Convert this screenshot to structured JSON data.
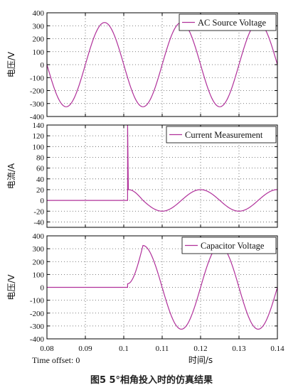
{
  "figure_caption": "图5   5°相角投入时的仿真结果",
  "time_offset_text": "Time offset: 0",
  "x_axis": {
    "label": "时间/s",
    "range": [
      0.08,
      0.14
    ],
    "ticks": [
      0.08,
      0.09,
      0.1,
      0.11,
      0.12,
      0.13,
      0.14
    ],
    "tick_labels": [
      "0.08",
      "0.09",
      "0.1",
      "0.11",
      "0.12",
      "0.13",
      "0.14"
    ]
  },
  "colors": {
    "trace": "#b0309a",
    "axis": "#000000",
    "grid": "#555555"
  },
  "chart_data": [
    {
      "type": "line",
      "legend": "AC Source Voltage",
      "ylabel": "电压/V",
      "ylim": [
        -400,
        400
      ],
      "yticks": [
        -400,
        -300,
        -200,
        -100,
        0,
        100,
        200,
        300,
        400
      ],
      "grid": true,
      "legend_placement": "top-right",
      "series": [
        {
          "x": [
            0.08,
            0.085,
            0.09,
            0.095,
            0.1,
            0.105,
            0.11,
            0.115,
            0.12,
            0.125,
            0.13,
            0.135,
            0.14
          ],
          "values": [
            0,
            -325,
            0,
            325,
            0,
            -325,
            0,
            325,
            0,
            -325,
            0,
            325,
            0
          ]
        }
      ]
    },
    {
      "type": "line",
      "legend": "Current Measurement",
      "ylabel": "电流/A",
      "ylim": [
        -50,
        140
      ],
      "yticks": [
        -40,
        -20,
        0,
        20,
        40,
        60,
        80,
        100,
        120,
        140
      ],
      "grid": true,
      "legend_placement": "top-right",
      "series": [
        {
          "x": [
            0.08,
            0.101,
            0.101,
            0.1012,
            0.105,
            0.11,
            0.115,
            0.12,
            0.125,
            0.13,
            0.135,
            0.14
          ],
          "values": [
            0,
            0,
            140,
            20,
            0,
            -20,
            0,
            20,
            0,
            -20,
            0,
            20
          ]
        }
      ]
    },
    {
      "type": "line",
      "legend": "Capacitor Voltage",
      "ylabel": "电压/V",
      "ylim": [
        -400,
        400
      ],
      "yticks": [
        -400,
        -300,
        -200,
        -100,
        0,
        100,
        200,
        300,
        400
      ],
      "grid": true,
      "legend_placement": "top-right",
      "series": [
        {
          "x": [
            0.08,
            0.101,
            0.101,
            0.105,
            0.11,
            0.115,
            0.12,
            0.125,
            0.13,
            0.135,
            0.14
          ],
          "values": [
            0,
            0,
            28,
            325,
            0,
            -325,
            0,
            325,
            0,
            -325,
            0
          ]
        }
      ]
    }
  ]
}
